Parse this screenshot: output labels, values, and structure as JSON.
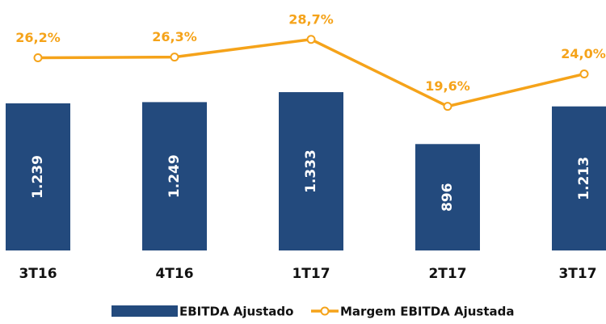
{
  "chart_data": {
    "type": "bar",
    "categories": [
      "3T16",
      "4T16",
      "1T17",
      "2T17",
      "3T17"
    ],
    "series": [
      {
        "name": "EBITDA Ajustado",
        "color": "#234a7d",
        "type": "bar",
        "values": [
          1239,
          1249,
          1333,
          896,
          1213
        ],
        "value_labels": [
          "1.239",
          "1.249",
          "1.333",
          "896",
          "1.213"
        ]
      },
      {
        "name": "Margem EBITDA Ajustada",
        "color": "#f5a31a",
        "type": "line",
        "axis": "y2",
        "values": [
          26.2,
          26.3,
          28.7,
          19.6,
          24.0
        ],
        "value_labels": [
          "26,2%",
          "26,3%",
          "28,7%",
          "19,6%",
          "24,0%"
        ]
      }
    ],
    "ylim": [
      0,
      2000
    ],
    "y2lim": [
      0,
      32.3
    ],
    "legend": "bottom"
  }
}
